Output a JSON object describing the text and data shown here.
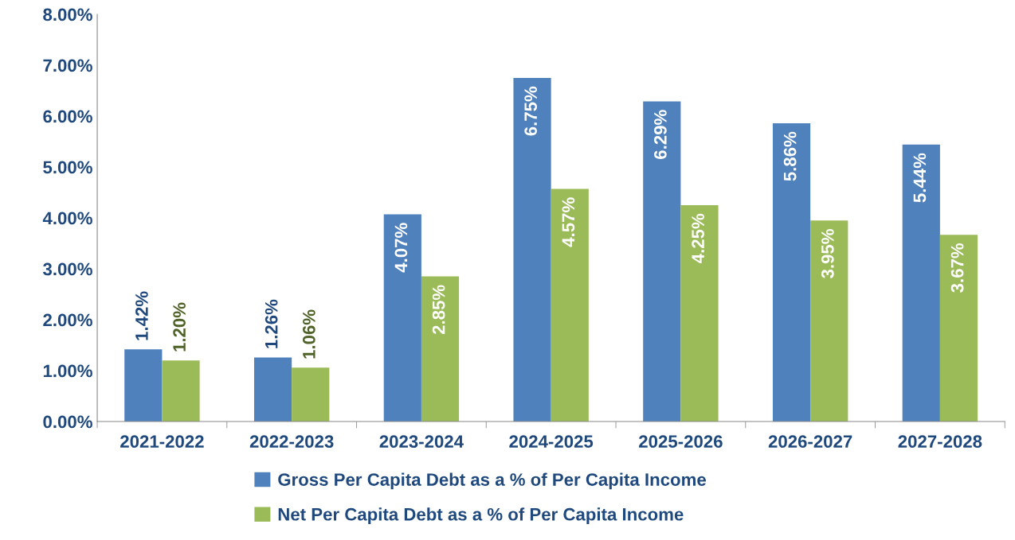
{
  "chart_data": {
    "type": "bar",
    "categories": [
      "2021-2022",
      "2022-2023",
      "2023-2024",
      "2024-2025",
      "2025-2026",
      "2026-2027",
      "2027-2028"
    ],
    "series": [
      {
        "name": "Gross Per Capita Debt as a % of Per Capita Income",
        "color": "#4f81bd",
        "values": [
          1.42,
          1.26,
          4.07,
          6.75,
          6.29,
          5.86,
          5.44
        ],
        "value_labels": [
          "1.42%",
          "1.26%",
          "4.07%",
          "6.75%",
          "6.29%",
          "5.86%",
          "5.44%"
        ]
      },
      {
        "name": "Net Per Capita Debt as a % of Per Capita Income",
        "color": "#9bbb59",
        "values": [
          1.2,
          1.06,
          2.85,
          4.57,
          4.25,
          3.95,
          3.67
        ],
        "value_labels": [
          "1.20%",
          "1.06%",
          "2.85%",
          "4.57%",
          "4.25%",
          "3.95%",
          "3.67%"
        ]
      }
    ],
    "ylim": [
      0,
      8
    ],
    "yticks": [
      {
        "value": 0,
        "label": "0.00%"
      },
      {
        "value": 1,
        "label": "1.00%"
      },
      {
        "value": 2,
        "label": "2.00%"
      },
      {
        "value": 3,
        "label": "3.00%"
      },
      {
        "value": 4,
        "label": "4.00%"
      },
      {
        "value": 5,
        "label": "5.00%"
      },
      {
        "value": 6,
        "label": "6.00%"
      },
      {
        "value": 7,
        "label": "7.00%"
      },
      {
        "value": 8,
        "label": "8.00%"
      }
    ],
    "grid": false,
    "legend": "bottom"
  }
}
